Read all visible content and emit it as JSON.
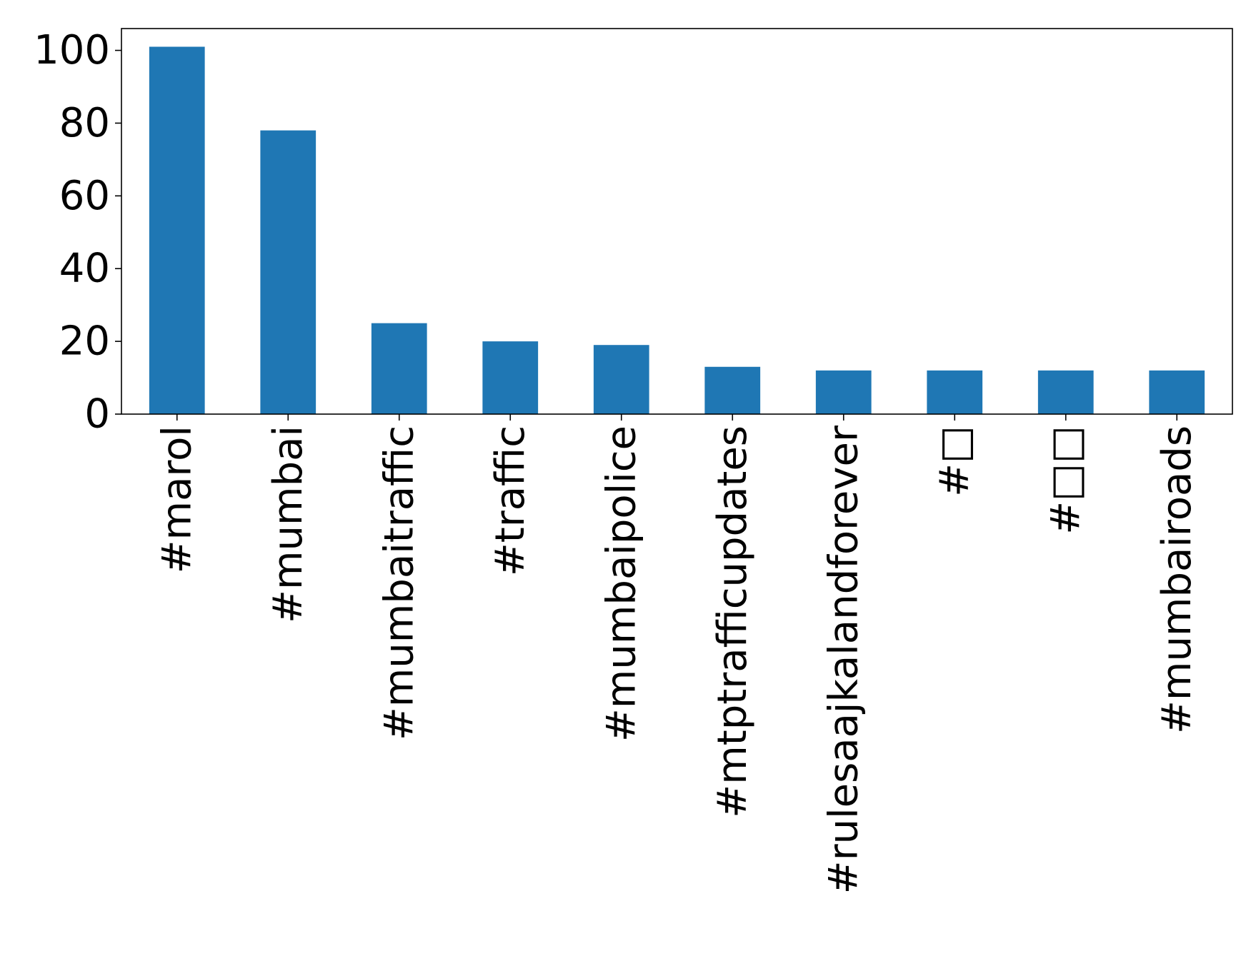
{
  "chart_data": {
    "type": "bar",
    "categories": [
      "#marol",
      "#mumbai",
      "#mumbaitraffic",
      "#traffic",
      "#mumbaipolice",
      "#mtptrafficupdates",
      "#rulesaajkalandforever",
      "#□",
      "#□□",
      "#mumbairoads"
    ],
    "values": [
      101,
      78,
      25,
      20,
      19,
      13,
      12,
      12,
      12,
      12
    ],
    "title": "",
    "xlabel": "",
    "ylabel": "",
    "ylim": [
      0,
      106
    ],
    "yticks": [
      0,
      20,
      40,
      60,
      80,
      100
    ],
    "bar_color": "#1f77b4",
    "grid": false,
    "legend": "none"
  }
}
